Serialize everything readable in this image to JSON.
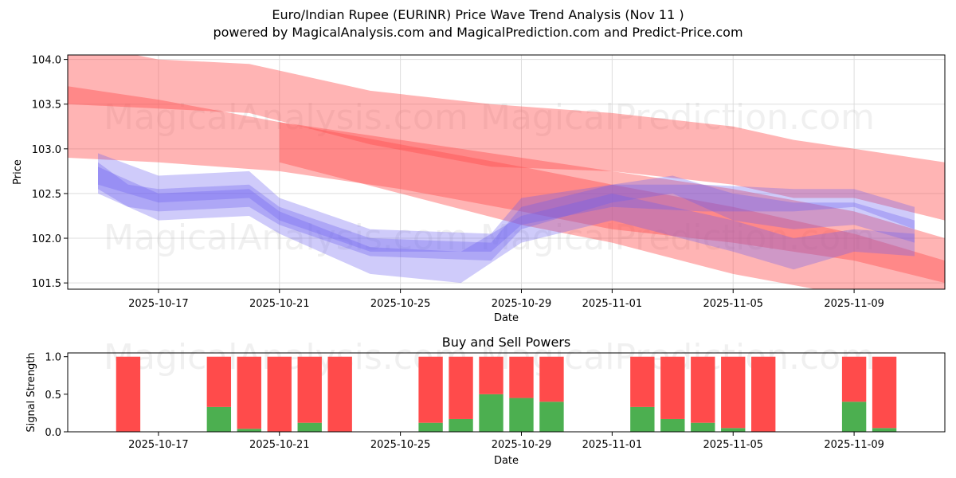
{
  "header": {
    "title_line1": "Euro/Indian Rupee (EURINR) Price Wave Trend Analysis (Nov 11 )",
    "title_line2": "powered by MagicalAnalysis.com and MagicalPrediction.com and Predict-Price.com"
  },
  "watermarks": [
    "MagicalAnalysis.com",
    "MagicalPrediction.com"
  ],
  "colors": {
    "red_band": "#ff4d4d",
    "blue_band": "#6b5cf0",
    "buy": "#4caf50",
    "sell": "#ff4b4b"
  },
  "chart_data": [
    {
      "type": "area",
      "title": "",
      "xlabel": "Date",
      "ylabel": "Price",
      "ylim": [
        101.43,
        104.05
      ],
      "xlim": [
        "2025-10-14",
        "2025-11-12"
      ],
      "grid": true,
      "x_ticks": [
        "2025-10-17",
        "2025-10-21",
        "2025-10-25",
        "2025-10-29",
        "2025-11-01",
        "2025-11-05",
        "2025-11-09"
      ],
      "y_ticks": [
        101.5,
        102.0,
        102.5,
        103.0,
        103.5,
        104.0
      ],
      "series": [
        {
          "name": "red-band-upper",
          "color": "red",
          "x": [
            "2025-10-14",
            "2025-10-17",
            "2025-10-20",
            "2025-10-24",
            "2025-10-28",
            "2025-11-01",
            "2025-11-05",
            "2025-11-07",
            "2025-11-09",
            "2025-11-12"
          ],
          "lower": [
            103.5,
            103.45,
            103.4,
            103.05,
            102.8,
            102.75,
            102.6,
            102.45,
            102.45,
            102.2
          ],
          "upper": [
            104.2,
            104.0,
            103.95,
            103.65,
            103.5,
            103.4,
            103.25,
            103.1,
            103.0,
            102.85
          ]
        },
        {
          "name": "red-band-mid",
          "color": "red",
          "x": [
            "2025-10-14",
            "2025-10-17",
            "2025-10-21",
            "2025-10-25",
            "2025-10-29",
            "2025-11-01",
            "2025-11-05",
            "2025-11-09",
            "2025-11-12"
          ],
          "lower": [
            102.9,
            102.85,
            102.75,
            102.55,
            102.3,
            102.1,
            101.95,
            101.75,
            101.5
          ],
          "upper": [
            103.7,
            103.55,
            103.3,
            103.1,
            102.9,
            102.75,
            102.55,
            102.3,
            102.0
          ]
        },
        {
          "name": "red-band-lower",
          "color": "red",
          "x": [
            "2025-10-21",
            "2025-10-25",
            "2025-10-29",
            "2025-11-01",
            "2025-11-05",
            "2025-11-09",
            "2025-11-12"
          ],
          "lower": [
            102.85,
            102.5,
            102.15,
            101.95,
            101.6,
            101.35,
            101.2
          ],
          "upper": [
            103.3,
            103.05,
            102.8,
            102.6,
            102.35,
            102.05,
            101.75
          ]
        },
        {
          "name": "blue-band-1",
          "color": "blue",
          "x": [
            "2025-10-15",
            "2025-10-16",
            "2025-10-17",
            "2025-10-20",
            "2025-10-21",
            "2025-10-24",
            "2025-10-28",
            "2025-10-29",
            "2025-11-01",
            "2025-11-03",
            "2025-11-05",
            "2025-11-07",
            "2025-11-09",
            "2025-11-11"
          ],
          "lower": [
            102.55,
            102.35,
            102.3,
            102.35,
            102.15,
            101.8,
            101.75,
            102.1,
            102.4,
            102.5,
            102.2,
            102.1,
            102.15,
            101.95
          ],
          "upper": [
            102.85,
            102.6,
            102.55,
            102.6,
            102.35,
            102.0,
            101.95,
            102.35,
            102.6,
            102.7,
            102.5,
            102.4,
            102.4,
            102.2
          ]
        },
        {
          "name": "blue-band-2",
          "color": "blue",
          "x": [
            "2025-10-15",
            "2025-10-17",
            "2025-10-20",
            "2025-10-21",
            "2025-10-24",
            "2025-10-28",
            "2025-10-29",
            "2025-11-01",
            "2025-11-04",
            "2025-11-07",
            "2025-11-09",
            "2025-11-11"
          ],
          "lower": [
            102.6,
            102.4,
            102.45,
            102.2,
            101.85,
            101.85,
            102.15,
            102.35,
            102.3,
            102.3,
            102.35,
            102.1
          ],
          "upper": [
            102.95,
            102.7,
            102.75,
            102.45,
            102.1,
            102.05,
            102.45,
            102.6,
            102.6,
            102.55,
            102.55,
            102.35
          ]
        },
        {
          "name": "blue-band-3",
          "color": "blue",
          "x": [
            "2025-10-15",
            "2025-10-17",
            "2025-10-20",
            "2025-10-21",
            "2025-10-24",
            "2025-10-27",
            "2025-10-29",
            "2025-11-01",
            "2025-11-05",
            "2025-11-07",
            "2025-11-09",
            "2025-11-11"
          ],
          "lower": [
            102.5,
            102.2,
            102.25,
            102.05,
            101.6,
            101.5,
            101.95,
            102.2,
            101.85,
            101.65,
            101.85,
            101.8
          ],
          "upper": [
            102.8,
            102.5,
            102.55,
            102.3,
            101.9,
            101.85,
            102.25,
            102.5,
            102.2,
            102.0,
            102.1,
            102.05
          ]
        }
      ]
    },
    {
      "type": "bar",
      "title": "Buy and Sell Powers",
      "xlabel": "Date",
      "ylabel": "Signal Strength",
      "ylim": [
        0,
        1.05
      ],
      "xlim": [
        "2025-10-14",
        "2025-11-12"
      ],
      "x_ticks": [
        "2025-10-17",
        "2025-10-21",
        "2025-10-25",
        "2025-10-29",
        "2025-11-01",
        "2025-11-05",
        "2025-11-09"
      ],
      "y_ticks": [
        "0.0",
        "0.5",
        "1.0"
      ],
      "categories": [
        "2025-10-16",
        "2025-10-19",
        "2025-10-20",
        "2025-10-21",
        "2025-10-22",
        "2025-10-23",
        "2025-10-26",
        "2025-10-27",
        "2025-10-28",
        "2025-10-29",
        "2025-10-30",
        "2025-11-02",
        "2025-11-03",
        "2025-11-04",
        "2025-11-05",
        "2025-11-06",
        "2025-11-09",
        "2025-11-10"
      ],
      "series": [
        {
          "name": "Buy",
          "values": [
            0,
            0.33,
            0.04,
            0,
            0.12,
            0,
            0.12,
            0.17,
            0.5,
            0.45,
            0.4,
            0.33,
            0.17,
            0.12,
            0.05,
            0,
            0.4,
            0.05
          ]
        },
        {
          "name": "Sell",
          "values": [
            1,
            0.67,
            0.96,
            1,
            0.88,
            1,
            0.88,
            0.83,
            0.5,
            0.55,
            0.6,
            0.67,
            0.83,
            0.88,
            0.95,
            1,
            0.6,
            0.95
          ]
        }
      ]
    }
  ]
}
